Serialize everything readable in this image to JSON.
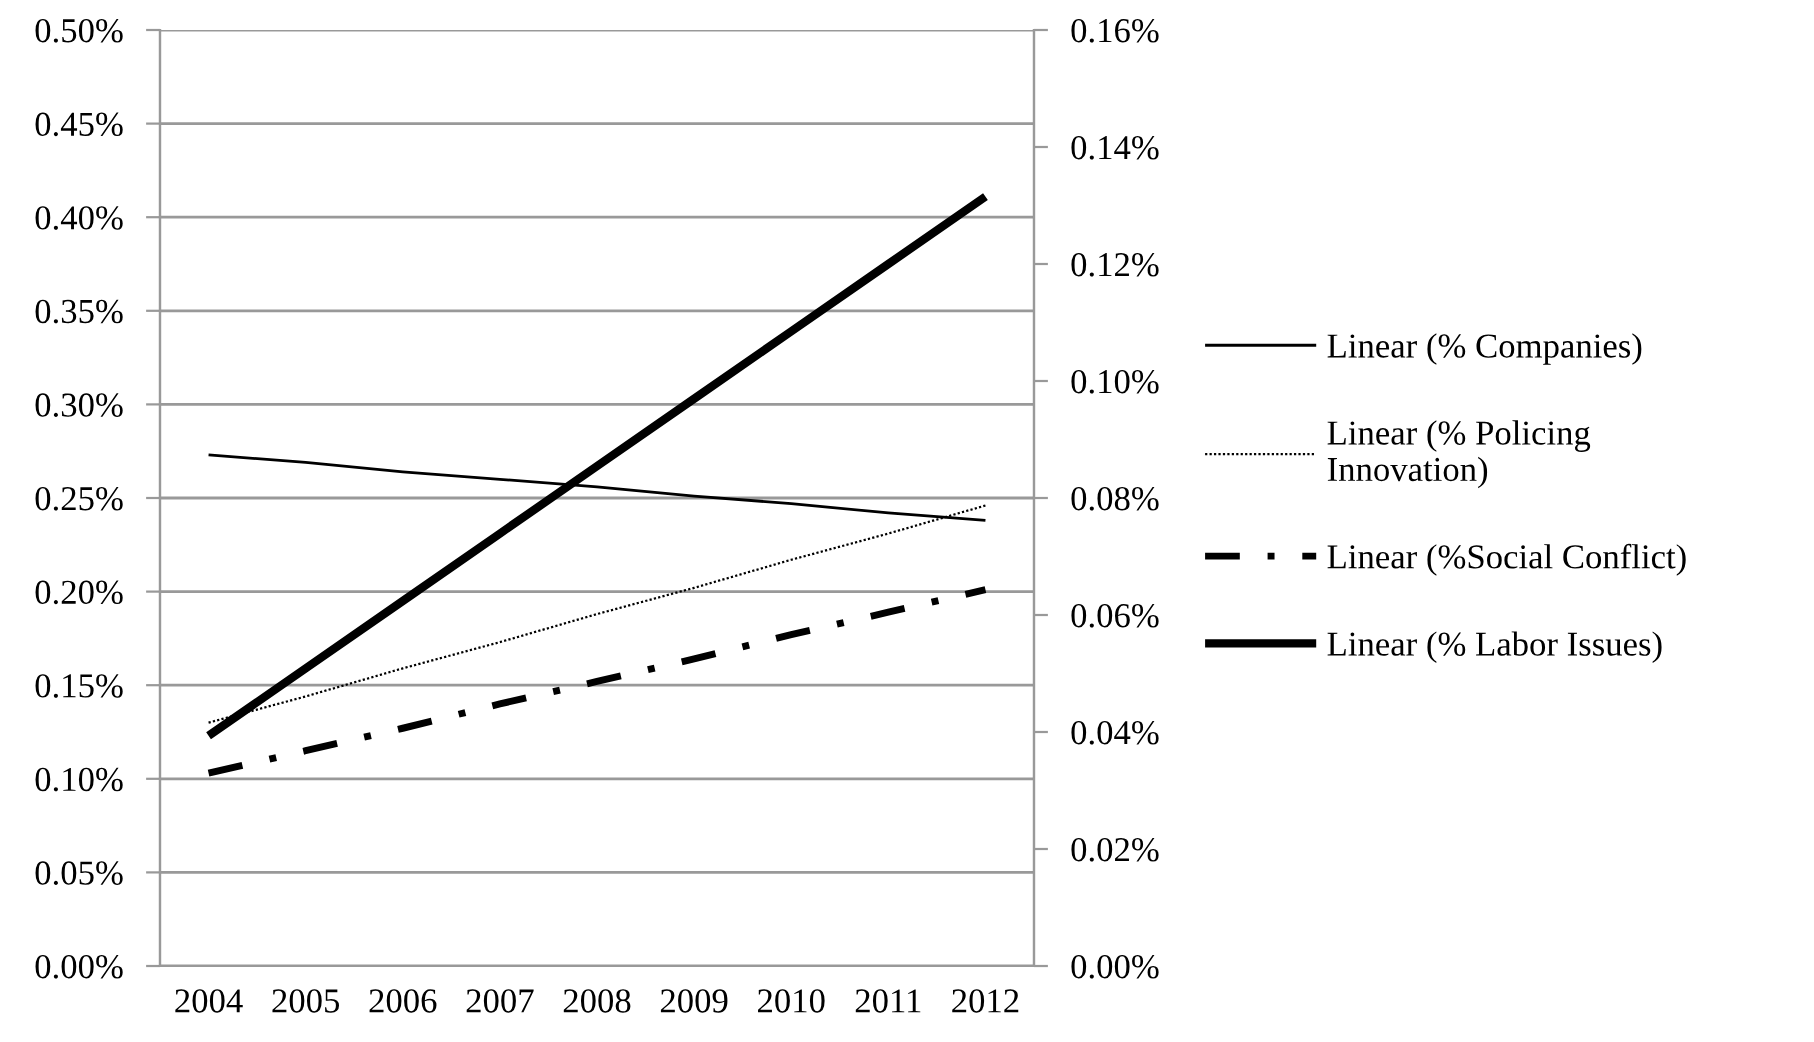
{
  "chart_data": {
    "type": "line",
    "categories": [
      "2004",
      "2005",
      "2006",
      "2007",
      "2008",
      "2009",
      "2010",
      "2011",
      "2012"
    ],
    "series": [
      {
        "name": "Linear (% Companies)",
        "color": "#000000",
        "line_style": "solid",
        "values": [
          0.273,
          0.269,
          0.264,
          0.26,
          0.256,
          0.251,
          0.247,
          0.242,
          0.238
        ]
      },
      {
        "name": "Linear (% Policing\nInnovation)",
        "color": "#000000",
        "line_style": "dotted",
        "values": [
          0.13,
          0.144,
          0.159,
          0.173,
          0.188,
          0.202,
          0.217,
          0.231,
          0.246
        ]
      },
      {
        "name": "Linear (%Social Conflict)",
        "color": "#000000",
        "line_style": "dashdot",
        "values": [
          0.103,
          0.115,
          0.127,
          0.14,
          0.152,
          0.164,
          0.177,
          0.189,
          0.201
        ]
      },
      {
        "name": "Linear (% Labor Issues)",
        "color": "#000000",
        "line_style": "solid",
        "values": [
          0.123,
          0.159,
          0.195,
          0.231,
          0.267,
          0.303,
          0.339,
          0.375,
          0.411
        ]
      }
    ],
    "ylim": [
      0,
      0.5
    ],
    "yticks": [
      {
        "value": 0,
        "label": "0.00%"
      },
      {
        "value": 0.05,
        "label": "0.05%"
      },
      {
        "value": 0.1,
        "label": "0.10%"
      },
      {
        "value": 0.15,
        "label": "0.15%"
      },
      {
        "value": 0.2,
        "label": "0.20%"
      },
      {
        "value": 0.25,
        "label": "0.25%"
      },
      {
        "value": 0.3,
        "label": "0.30%"
      },
      {
        "value": 0.35,
        "label": "0.35%"
      },
      {
        "value": 0.4,
        "label": "0.40%"
      },
      {
        "value": 0.45,
        "label": "0.45%"
      },
      {
        "value": 0.5,
        "label": "0.50%"
      }
    ],
    "y2lim": [
      0,
      0.16
    ],
    "y2ticks": [
      {
        "value": 0,
        "label": "0.00%"
      },
      {
        "value": 0.02,
        "label": "0.02%"
      },
      {
        "value": 0.04,
        "label": "0.04%"
      },
      {
        "value": 0.06,
        "label": "0.06%"
      },
      {
        "value": 0.08,
        "label": "0.08%"
      },
      {
        "value": 0.1,
        "label": "0.10%"
      },
      {
        "value": 0.12,
        "label": "0.12%"
      },
      {
        "value": 0.14,
        "label": "0.14%"
      },
      {
        "value": 0.16,
        "label": "0.16%"
      }
    ],
    "grid": "y",
    "legend": "right",
    "marker": "none"
  }
}
